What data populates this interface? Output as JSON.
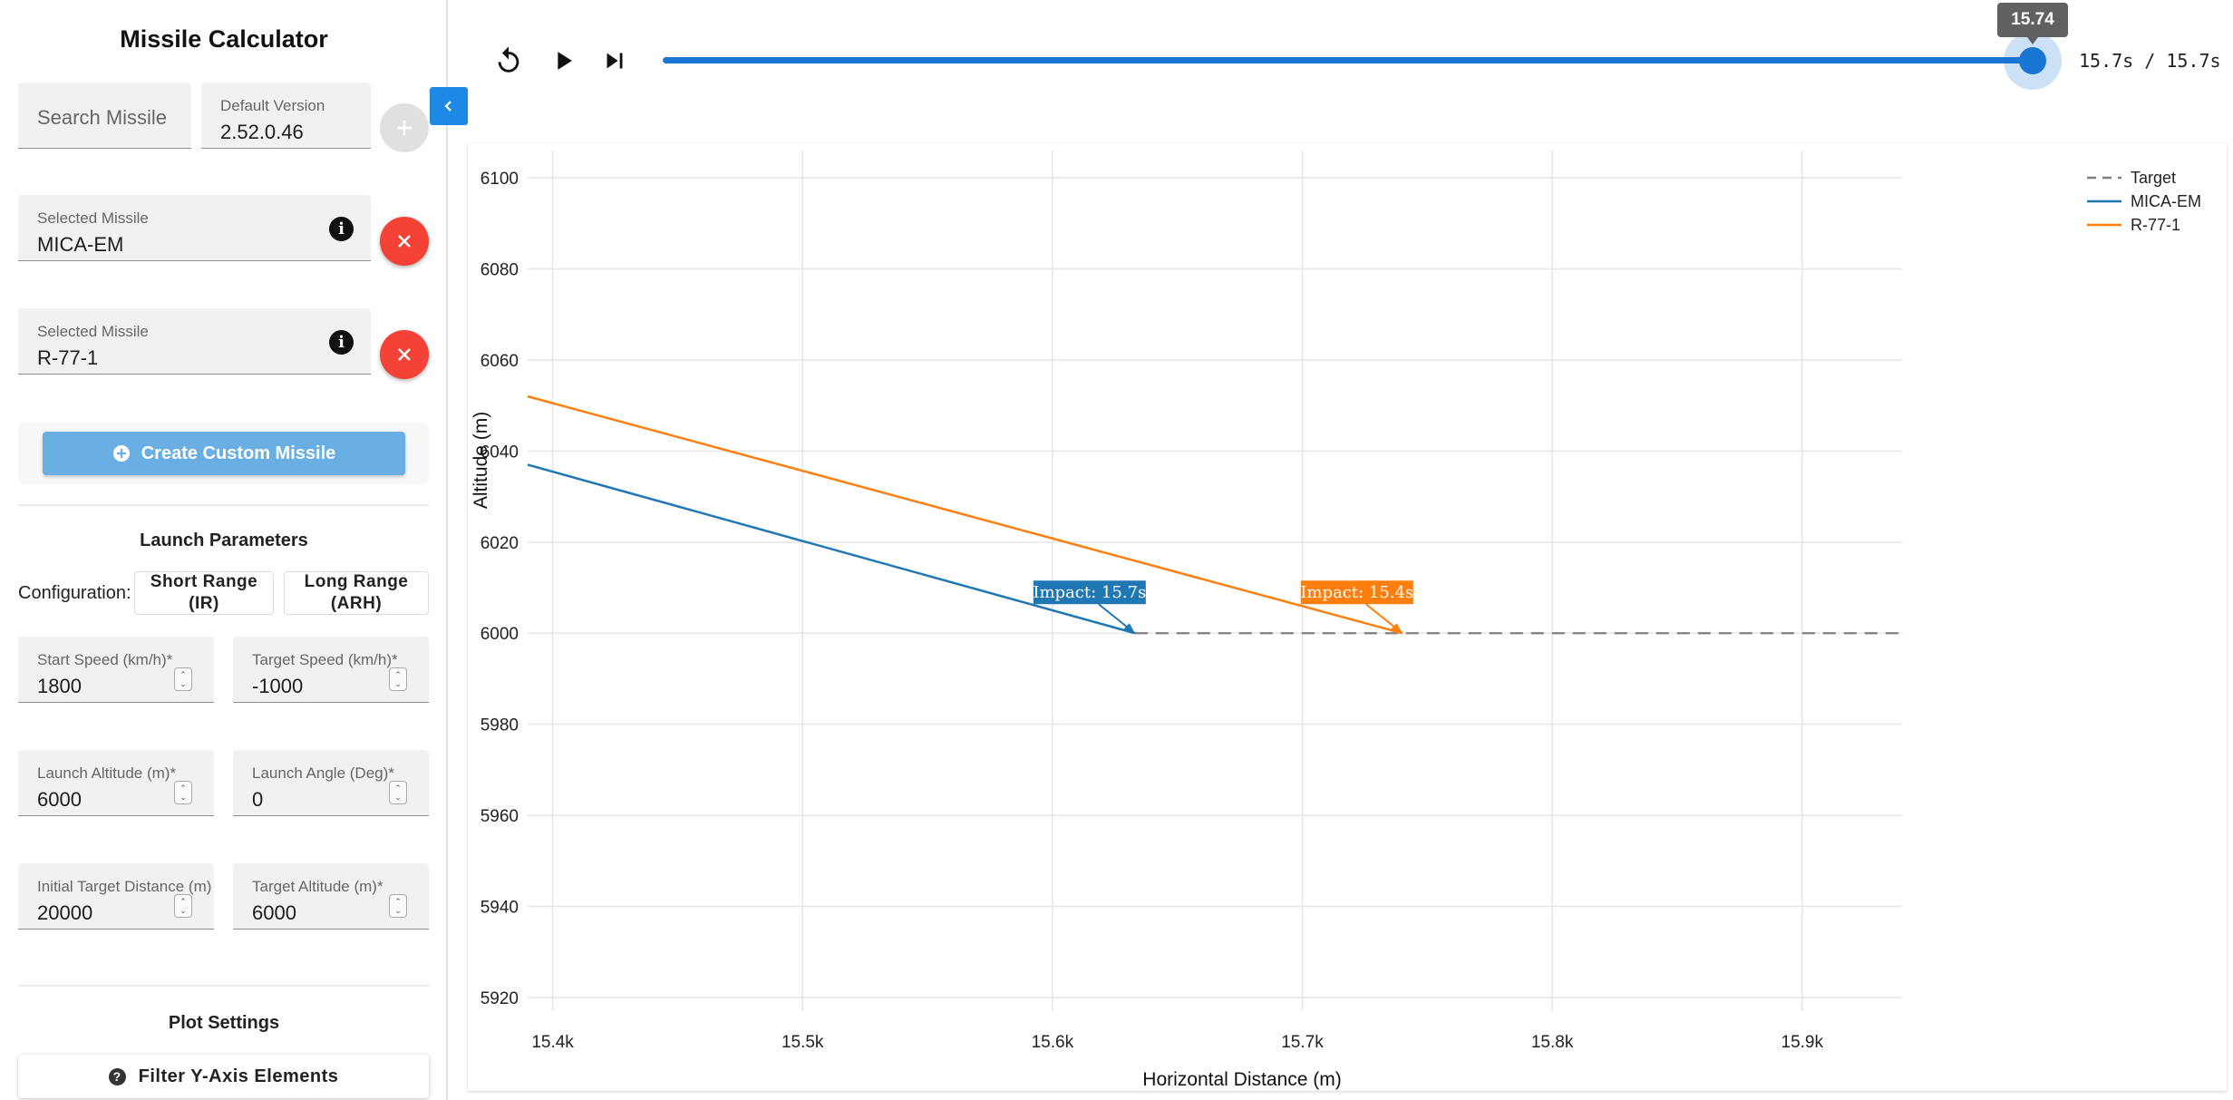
{
  "app": {
    "title": "Missile Calculator"
  },
  "search": {
    "placeholder": "Search Missile"
  },
  "version": {
    "label": "Default Version",
    "value": "2.52.0.46"
  },
  "selected_missiles": [
    {
      "label": "Selected Missile",
      "value": "MICA-EM"
    },
    {
      "label": "Selected Missile",
      "value": "R-77-1"
    }
  ],
  "create_button": {
    "label": "Create Custom Missile"
  },
  "launch_params": {
    "title": "Launch Parameters",
    "config_label": "Configuration:",
    "config_options": [
      "Short Range (IR)",
      "Long Range (ARH)"
    ],
    "fields": {
      "start_speed": {
        "label": "Start Speed (km/h)*",
        "value": "1800"
      },
      "target_speed": {
        "label": "Target Speed (km/h)*",
        "value": "-1000"
      },
      "launch_altitude": {
        "label": "Launch Altitude (m)*",
        "value": "6000"
      },
      "launch_angle": {
        "label": "Launch Angle (Deg)*",
        "value": "0"
      },
      "initial_target_distance": {
        "label": "Initial Target Distance (m)",
        "value": "20000"
      },
      "target_altitude": {
        "label": "Target Altitude (m)*",
        "value": "6000"
      }
    }
  },
  "plot_settings": {
    "title": "Plot Settings",
    "filter_button": "Filter Y-Axis Elements"
  },
  "player": {
    "slider_value": "15.74",
    "time_display": "15.7s / 15.7s",
    "progress": 1.0,
    "icons": [
      "replay-icon",
      "play-icon",
      "skip-next-icon"
    ]
  },
  "colors": {
    "accent": "#1976d2",
    "mica": "#1f77b4",
    "r77": "#ff7f0e",
    "target": "#7f7f7f",
    "remove": "#f44336"
  },
  "chart_data": {
    "type": "line",
    "xlabel": "Horizontal Distance (m)",
    "ylabel": "Altitude (m)",
    "xlim": [
      15390,
      15940
    ],
    "ylim": [
      5917,
      6106
    ],
    "x_ticks": [
      15400,
      15500,
      15600,
      15700,
      15800,
      15900
    ],
    "x_tick_labels": [
      "15.4k",
      "15.5k",
      "15.6k",
      "15.7k",
      "15.8k",
      "15.9k"
    ],
    "y_ticks": [
      5920,
      5940,
      5960,
      5980,
      6000,
      6020,
      6040,
      6060,
      6080,
      6100
    ],
    "grid": true,
    "legend_position": "top-right",
    "series": [
      {
        "name": "Target",
        "color": "#7f7f7f",
        "dash": true,
        "x": [
          15633,
          15940
        ],
        "y": [
          6000,
          6000
        ]
      },
      {
        "name": "MICA-EM",
        "color": "#1f77b4",
        "dash": false,
        "x": [
          15390,
          15633
        ],
        "y": [
          6037,
          6000
        ]
      },
      {
        "name": "R-77-1",
        "color": "#ff7f0e",
        "dash": false,
        "x": [
          15390,
          15740
        ],
        "y": [
          6052,
          6000
        ]
      }
    ],
    "annotations": [
      {
        "text": "Impact: 15.7s",
        "x": 15633,
        "y": 6000,
        "color": "#1f77b4"
      },
      {
        "text": "Impact: 15.4s",
        "x": 15740,
        "y": 6000,
        "color": "#ff7f0e"
      }
    ]
  }
}
